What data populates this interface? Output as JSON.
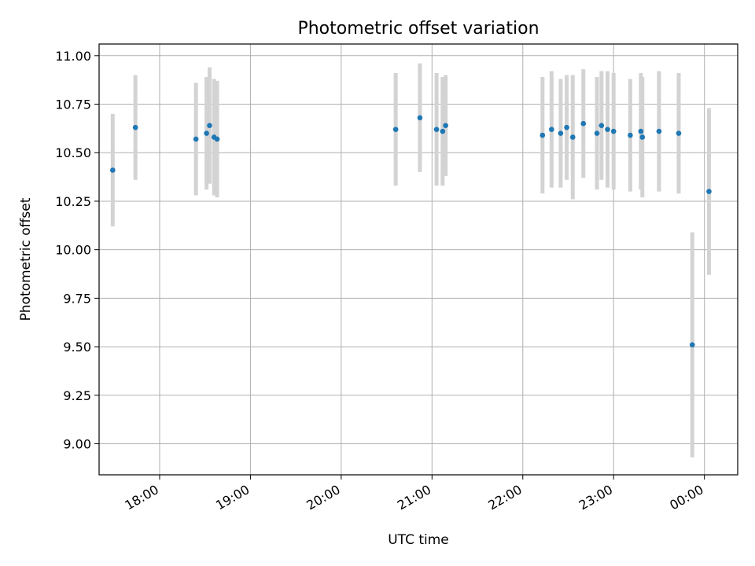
{
  "chart_data": {
    "type": "scatter",
    "title": "Photometric offset variation",
    "xlabel": "UTC time",
    "ylabel": "Photometric offset",
    "grid": true,
    "x_axis": {
      "type": "time",
      "range": [
        "17:20",
        "00:22"
      ],
      "ticks": [
        "18:00",
        "19:00",
        "20:00",
        "21:00",
        "22:00",
        "23:00",
        "00:00"
      ]
    },
    "y_axis": {
      "range": [
        8.84,
        11.06
      ],
      "ticks": [
        "9.00",
        "9.25",
        "9.50",
        "9.75",
        "10.00",
        "10.25",
        "10.50",
        "10.75",
        "11.00"
      ]
    },
    "colors": {
      "point": "#1f77b4",
      "errorbar": "#d3d3d3",
      "grid": "#b0b0b0"
    },
    "series": [
      {
        "points": [
          {
            "x": "17:29",
            "y": 10.41,
            "err": 0.29
          },
          {
            "x": "17:44",
            "y": 10.63,
            "err": 0.27
          },
          {
            "x": "18:24",
            "y": 10.57,
            "err": 0.29
          },
          {
            "x": "18:31",
            "y": 10.6,
            "err": 0.29
          },
          {
            "x": "18:33",
            "y": 10.64,
            "err": 0.3
          },
          {
            "x": "18:36",
            "y": 10.58,
            "err": 0.3
          },
          {
            "x": "18:38",
            "y": 10.57,
            "err": 0.3
          },
          {
            "x": "20:36",
            "y": 10.62,
            "err": 0.29
          },
          {
            "x": "20:52",
            "y": 10.68,
            "err": 0.28
          },
          {
            "x": "21:03",
            "y": 10.62,
            "err": 0.29
          },
          {
            "x": "21:07",
            "y": 10.61,
            "err": 0.28
          },
          {
            "x": "21:09",
            "y": 10.64,
            "err": 0.26
          },
          {
            "x": "22:13",
            "y": 10.59,
            "err": 0.3
          },
          {
            "x": "22:19",
            "y": 10.62,
            "err": 0.3
          },
          {
            "x": "22:25",
            "y": 10.6,
            "err": 0.28
          },
          {
            "x": "22:29",
            "y": 10.63,
            "err": 0.27
          },
          {
            "x": "22:33",
            "y": 10.58,
            "err": 0.32
          },
          {
            "x": "22:40",
            "y": 10.65,
            "err": 0.28
          },
          {
            "x": "22:49",
            "y": 10.6,
            "err": 0.29
          },
          {
            "x": "22:52",
            "y": 10.64,
            "err": 0.28
          },
          {
            "x": "22:56",
            "y": 10.62,
            "err": 0.3
          },
          {
            "x": "23:00",
            "y": 10.61,
            "err": 0.3
          },
          {
            "x": "23:11",
            "y": 10.59,
            "err": 0.29
          },
          {
            "x": "23:18",
            "y": 10.61,
            "err": 0.3
          },
          {
            "x": "23:19",
            "y": 10.58,
            "err": 0.31
          },
          {
            "x": "23:30",
            "y": 10.61,
            "err": 0.31
          },
          {
            "x": "23:43",
            "y": 10.6,
            "err": 0.31
          },
          {
            "x": "23:52",
            "y": 9.51,
            "err": 0.58
          },
          {
            "x": "00:03",
            "y": 10.3,
            "err": 0.43
          }
        ]
      }
    ]
  }
}
